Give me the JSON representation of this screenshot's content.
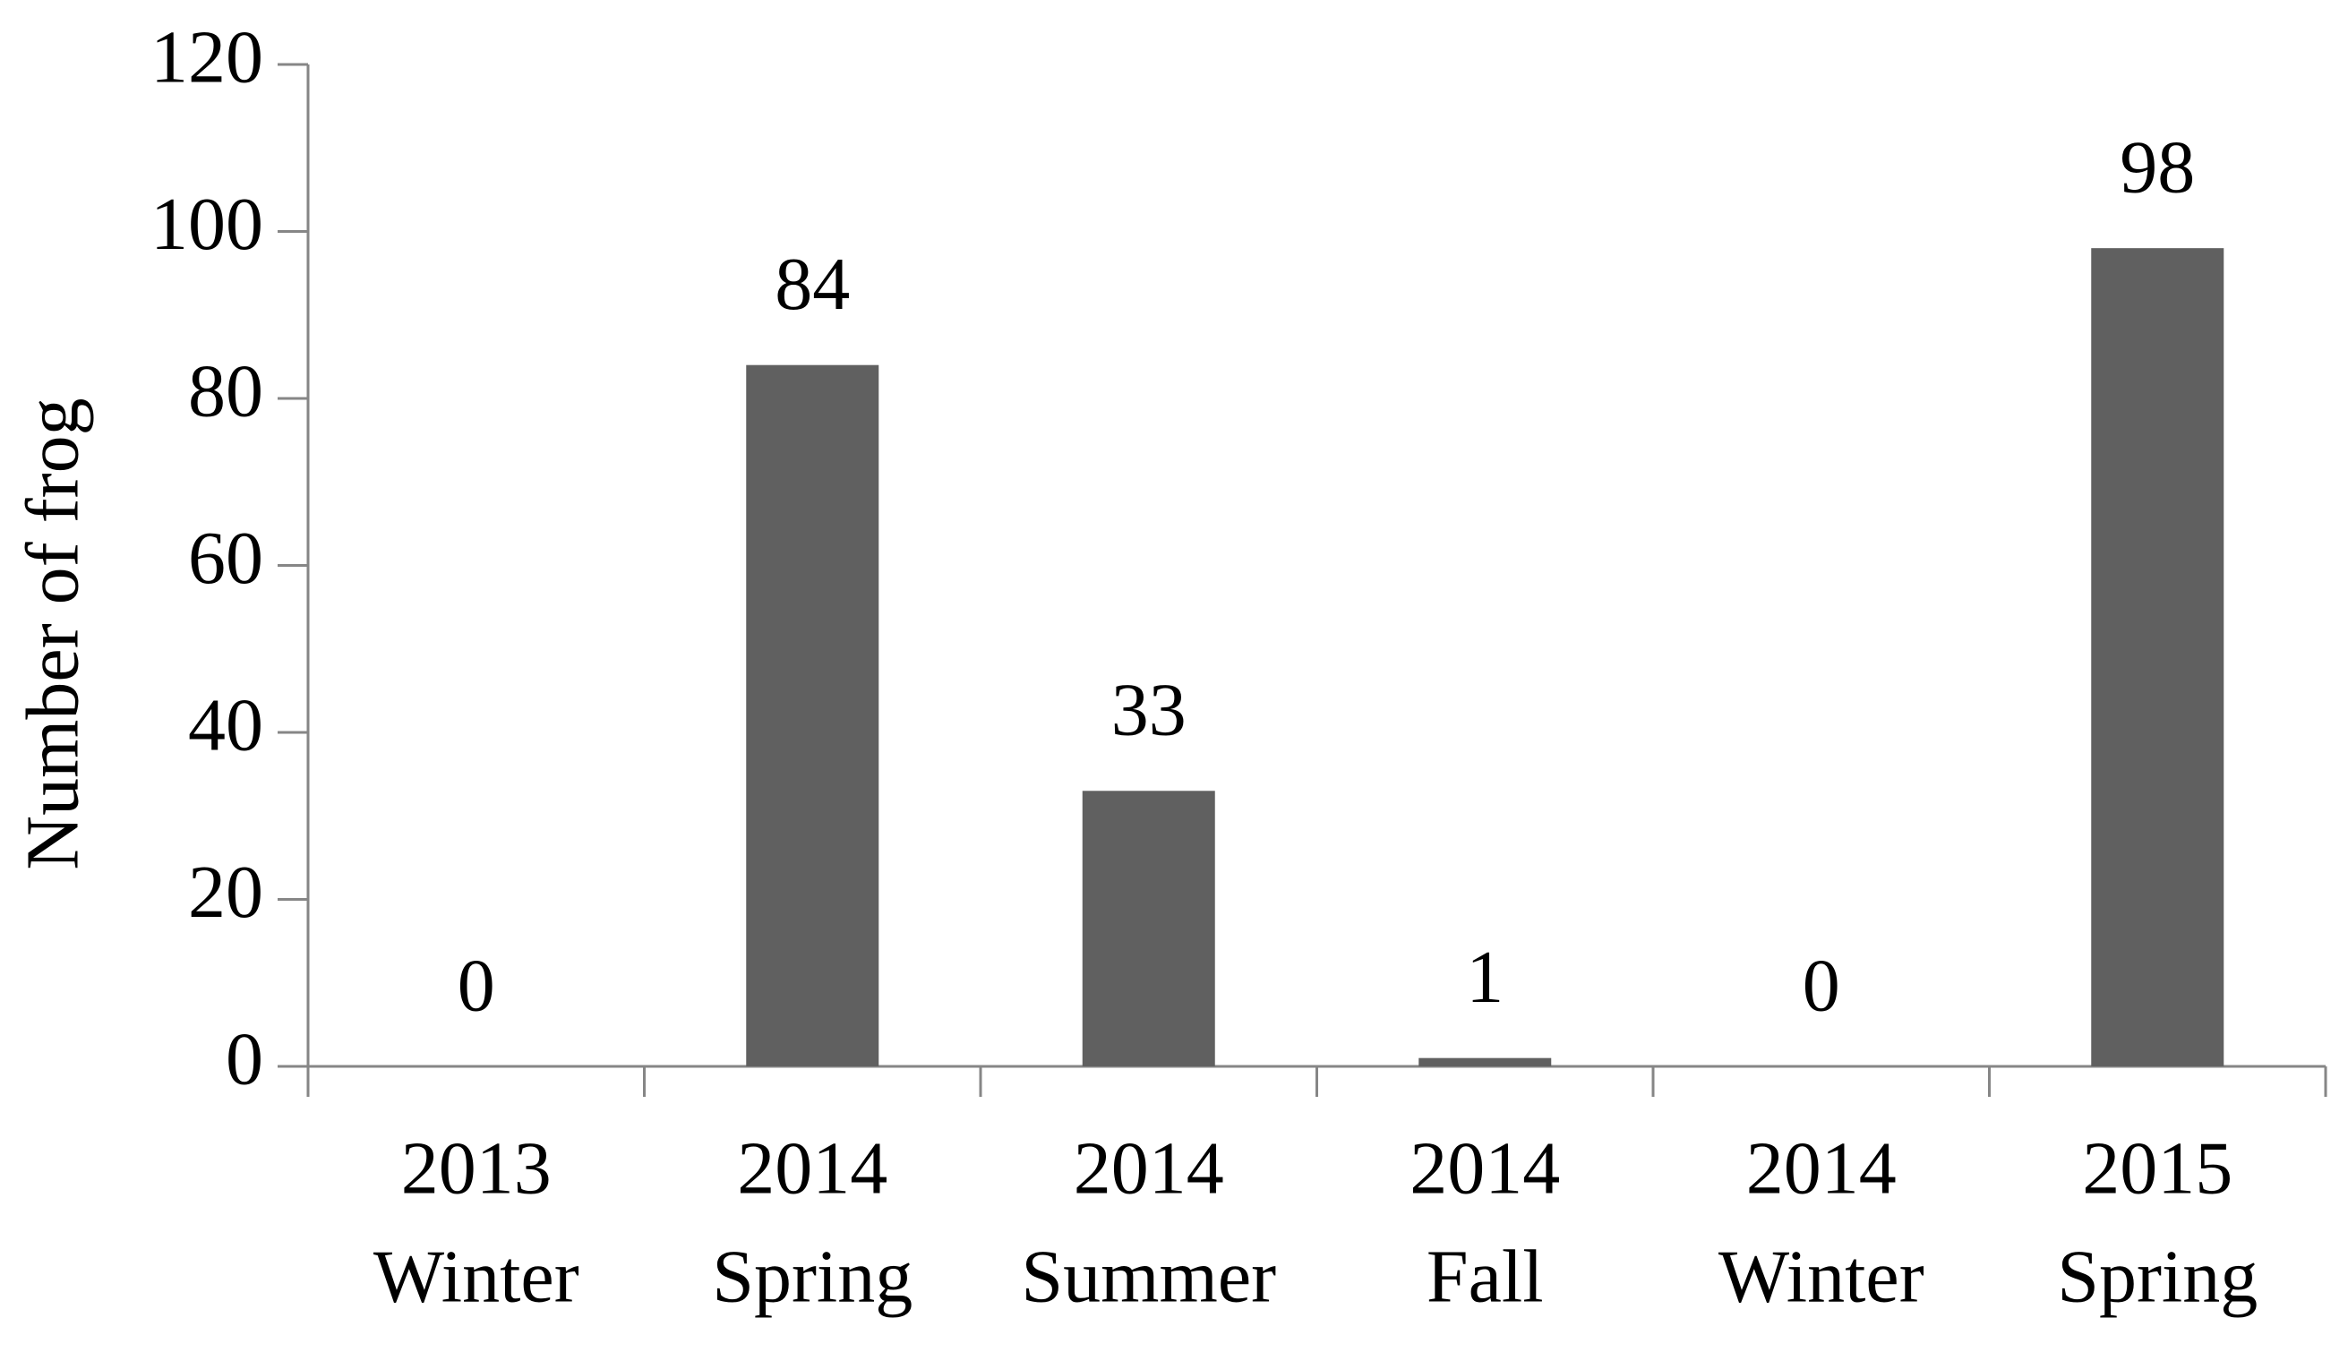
{
  "chart_data": {
    "type": "bar",
    "y_label": "Number of frog",
    "categories": [
      [
        "2013",
        "Winter"
      ],
      [
        "2014",
        "Spring"
      ],
      [
        "2014",
        "Summer"
      ],
      [
        "2014",
        "Fall"
      ],
      [
        "2014",
        "Winter"
      ],
      [
        "2015",
        "Spring"
      ]
    ],
    "values": [
      0,
      84,
      33,
      1,
      0,
      98
    ],
    "color": "#606060",
    "ylim": [
      0,
      120
    ],
    "yticks": [
      0,
      20,
      40,
      60,
      80,
      100,
      120
    ],
    "grid": false
  }
}
